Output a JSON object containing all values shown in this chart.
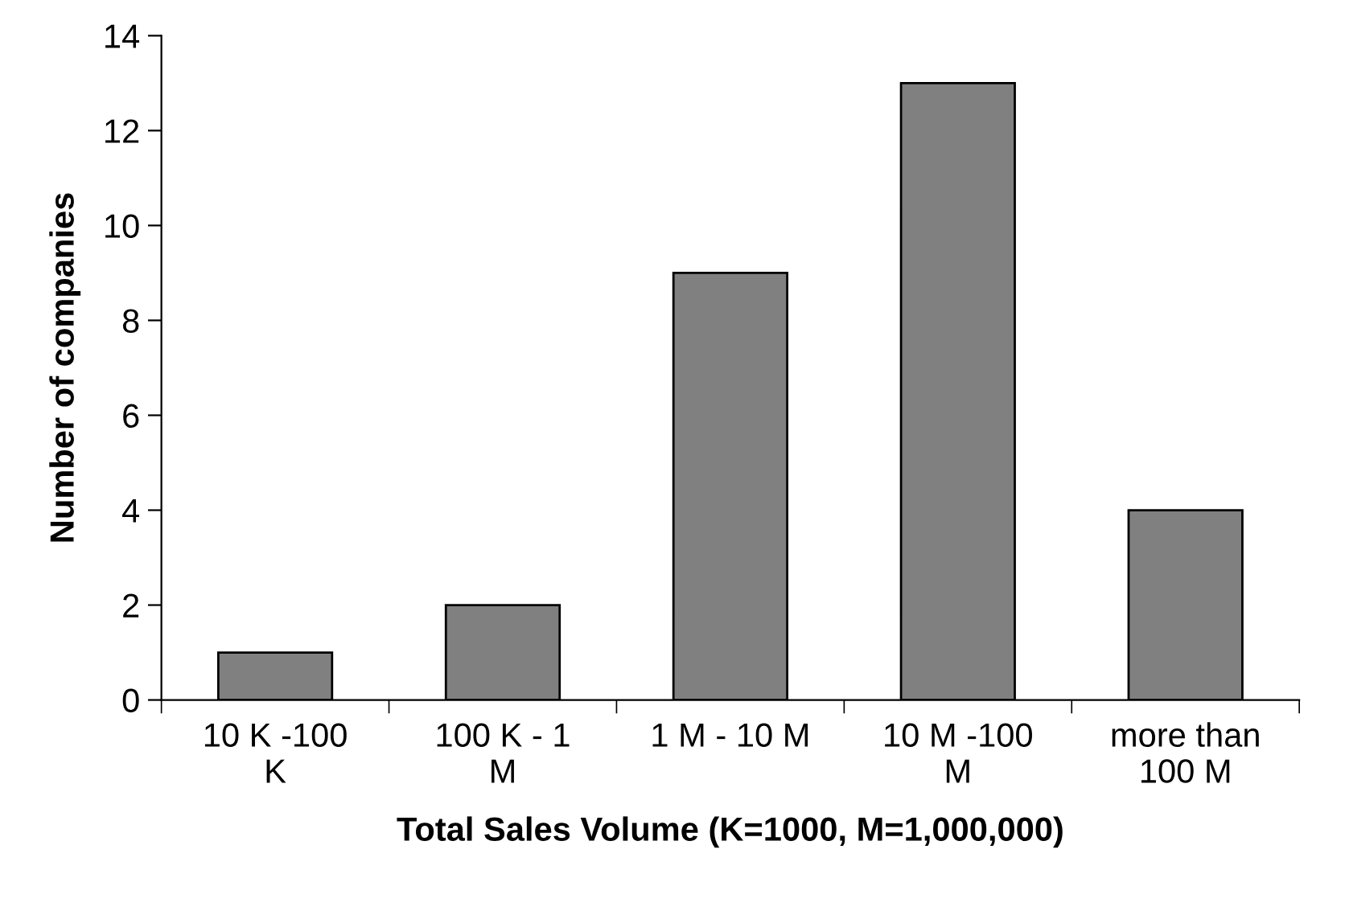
{
  "chart_data": {
    "type": "bar",
    "xlabel": "Total Sales Volume (K=1000, M=1,000,000)",
    "ylabel": "Number of companies",
    "categories": [
      "10 K -100\nK",
      "100 K - 1\nM",
      "1 M - 10 M",
      "10 M -100\nM",
      "more than\n100 M"
    ],
    "values": [
      1,
      2,
      9,
      13,
      4
    ],
    "color": "#808080",
    "ylim": [
      0,
      14
    ],
    "yticks": [
      0,
      2,
      4,
      6,
      8,
      10,
      12,
      14
    ],
    "grid": false,
    "legend": false
  }
}
